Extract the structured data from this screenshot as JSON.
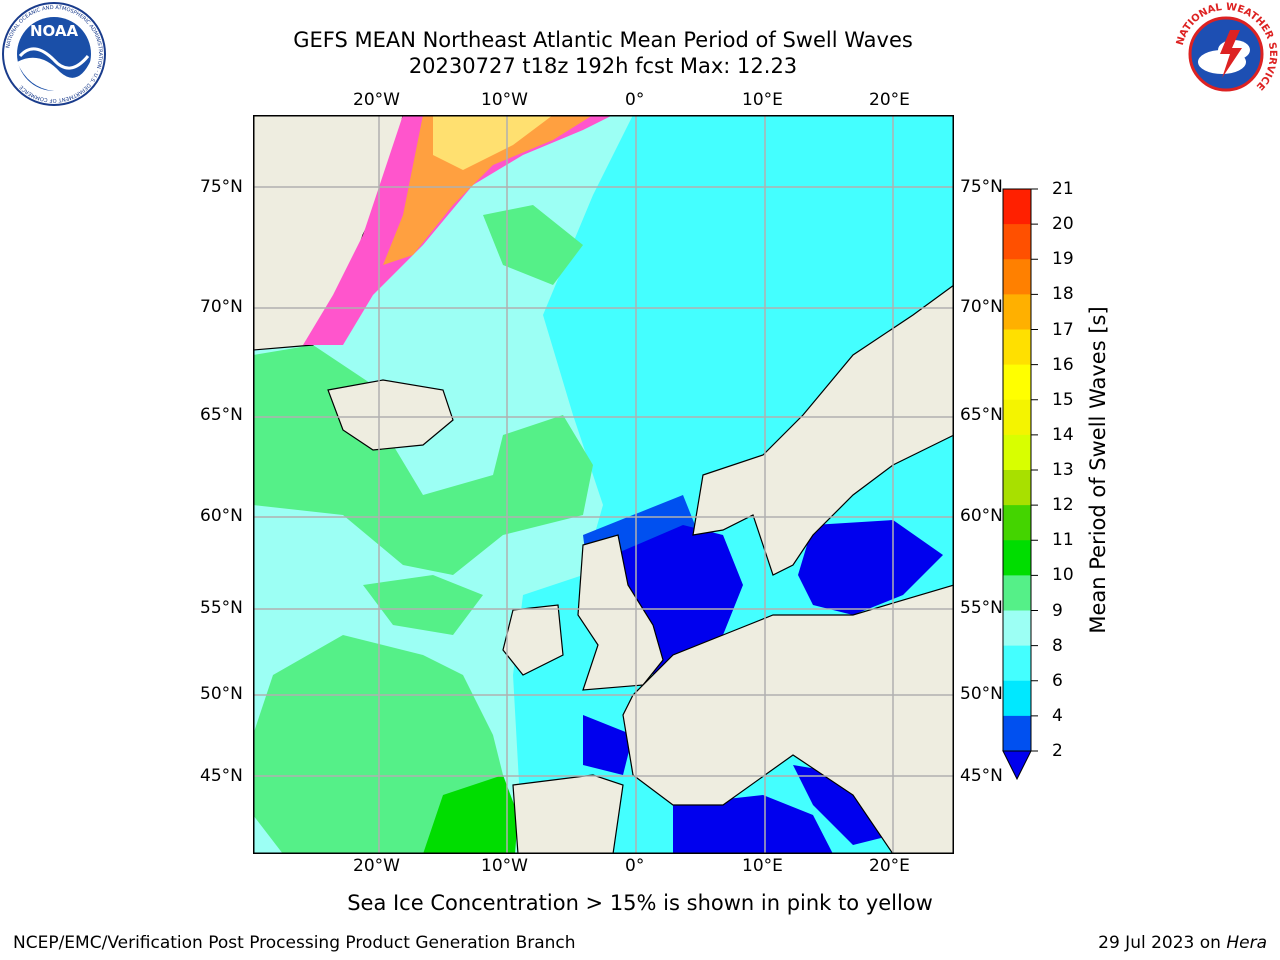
{
  "title": {
    "line1": "GEFS MEAN Northeast Atlantic Mean Period of Swell Waves",
    "line2": "20230727 t18z 192h fcst   Max: 12.23"
  },
  "logos": {
    "left": "noaa-logo",
    "left_text": "NOAA",
    "left_ring_text": "NATIONAL OCEANIC AND ATMOSPHERIC ADMINISTRATION · U.S. DEPARTMENT OF COMMERCE",
    "right": "nws-logo",
    "right_ring_text": "NATIONAL WEATHER SERVICE"
  },
  "axes": {
    "lon_labels": [
      "20°W",
      "10°W",
      "0°",
      "10°E",
      "20°E"
    ],
    "lat_labels": [
      "75°N",
      "70°N",
      "65°N",
      "60°N",
      "55°N",
      "50°N",
      "45°N"
    ]
  },
  "colorbar": {
    "title": "Mean Period of Swell Waves [s]",
    "ticks": [
      "2",
      "4",
      "6",
      "8",
      "9",
      "10",
      "11",
      "12",
      "13",
      "14",
      "15",
      "16",
      "17",
      "18",
      "19",
      "20",
      "21"
    ],
    "colors": [
      "#0050f0",
      "#00e8ff",
      "#44ffff",
      "#9cfff4",
      "#55f088",
      "#00dd00",
      "#44d400",
      "#a8e000",
      "#d8ff00",
      "#f4f400",
      "#ffff00",
      "#ffe000",
      "#ffb000",
      "#ff8000",
      "#ff5000",
      "#ff2000",
      "#ff0000"
    ],
    "extend_color": "#0000ee"
  },
  "map": {
    "colors": {
      "land": "#eeede0",
      "ocean_cyan": "#44ffff",
      "ocean_light": "#9cfff4",
      "swell_green": "#55f088",
      "swell_bright_green": "#00dd00",
      "short_period_blue": "#0000ee",
      "mid_blue": "#0050f0",
      "ice_pink": "#ff55cc",
      "ice_orange": "#ffa040",
      "ice_yellow": "#ffe070",
      "gridline": "#b0b0b0"
    }
  },
  "subtitle": "Sea Ice Concentration > 15% is shown in pink to yellow",
  "footer": {
    "left": "NCEP/EMC/Verification Post Processing Product Generation Branch",
    "right_prefix": "29 Jul 2023 on ",
    "right_host": "Hera"
  }
}
